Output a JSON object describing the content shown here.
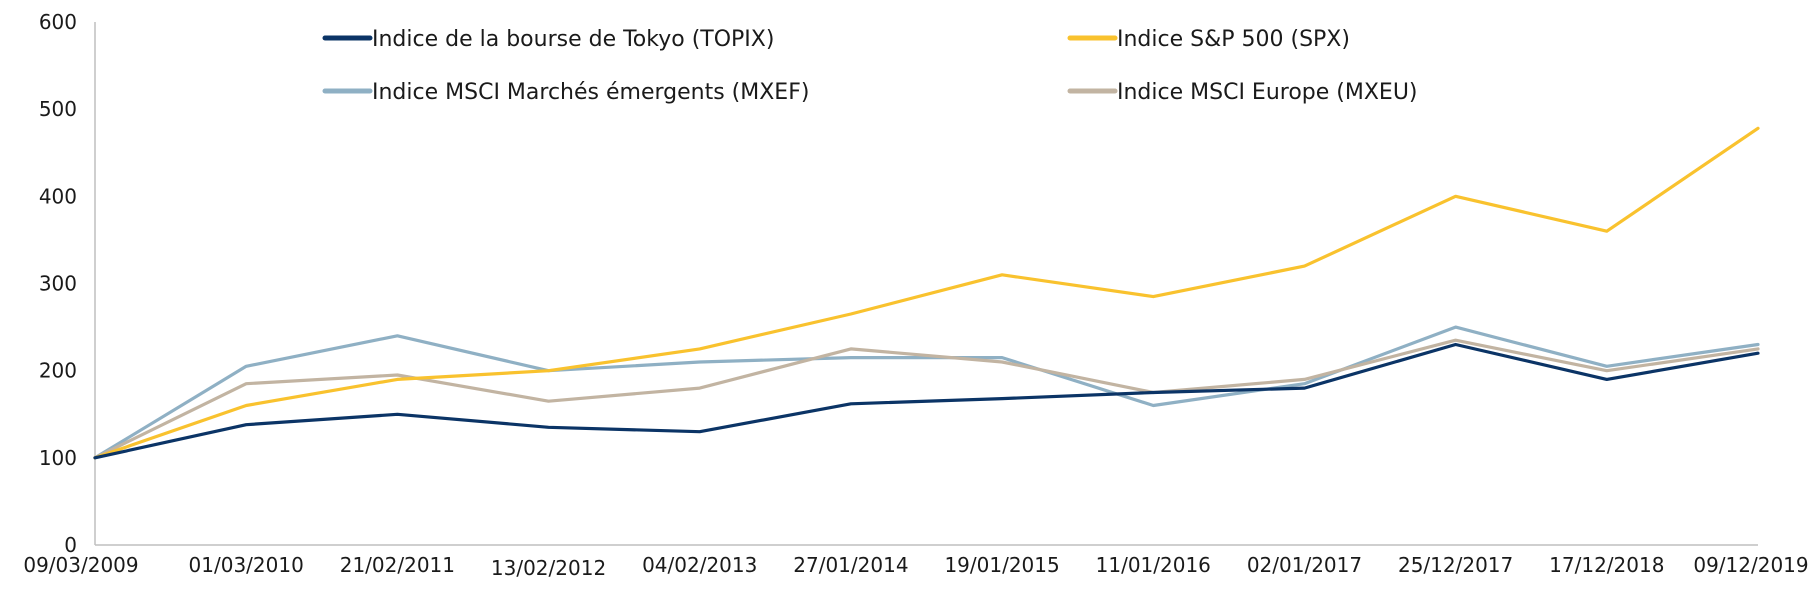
{
  "chart_data": {
    "type": "line",
    "title": "",
    "xlabel": "",
    "ylabel": "",
    "ylim": [
      0,
      600
    ],
    "y_ticks": [
      "0",
      "100",
      "200",
      "300",
      "400",
      "500",
      "600"
    ],
    "x_tick_labels": [
      "09/03/2009",
      "01/03/2010",
      "21/02/2011",
      "13/02/2012",
      "04/02/2013",
      "27/01/2014",
      "19/01/2015",
      "11/01/2016",
      "02/01/2017",
      "25/12/2017",
      "17/12/2018",
      "09/12/2019"
    ],
    "grid": false,
    "legend_position": "top",
    "x": [
      "09/03/2009",
      "01/03/2010",
      "21/02/2011",
      "13/02/2012",
      "04/02/2013",
      "27/01/2014",
      "19/01/2015",
      "11/01/2016",
      "02/01/2017",
      "25/12/2017",
      "17/12/2018",
      "09/12/2019"
    ],
    "series": [
      {
        "name": "Indice de la bourse de Tokyo (TOPIX)",
        "color": "#0b3466",
        "values": [
          100,
          138,
          150,
          135,
          130,
          162,
          168,
          175,
          180,
          230,
          190,
          220
        ]
      },
      {
        "name": "Indice S&P 500 (SPX)",
        "color": "#f9c22e",
        "values": [
          100,
          160,
          190,
          200,
          225,
          265,
          310,
          285,
          320,
          400,
          360,
          478
        ]
      },
      {
        "name": "Indice MSCI Marchés émergents (MXEF)",
        "color": "#8fb0c4",
        "values": [
          100,
          205,
          240,
          200,
          210,
          215,
          215,
          160,
          185,
          250,
          205,
          230
        ]
      },
      {
        "name": "Indice MSCI Europe (MXEU)",
        "color": "#c2b4a2",
        "values": [
          100,
          185,
          195,
          165,
          180,
          225,
          210,
          175,
          190,
          235,
          200,
          225
        ]
      }
    ]
  }
}
